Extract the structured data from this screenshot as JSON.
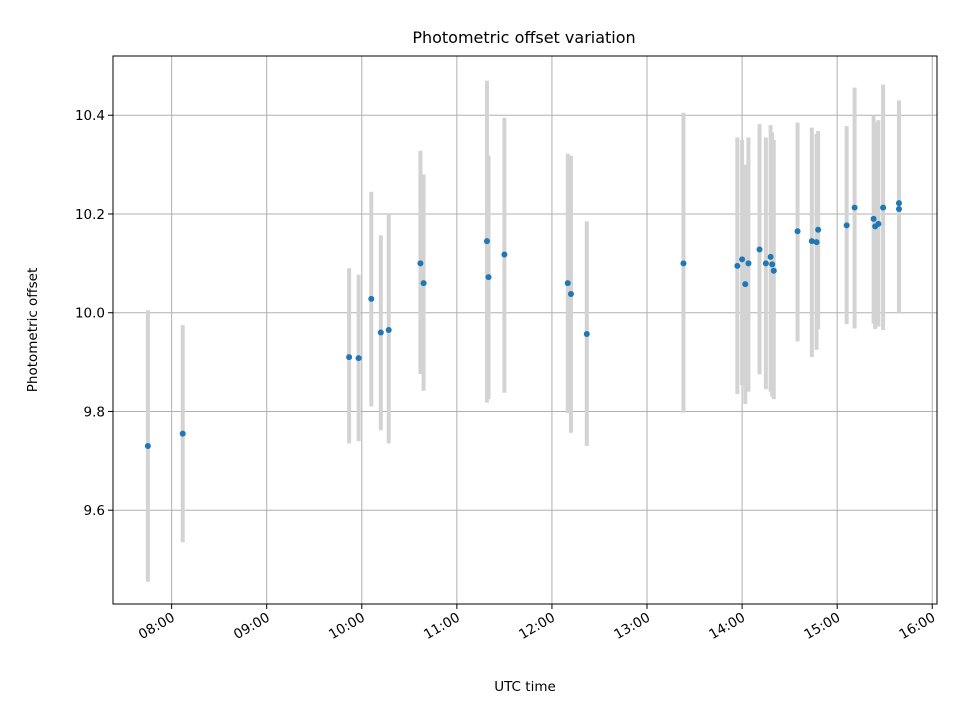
{
  "chart_data": {
    "type": "scatter",
    "title": "Photometric offset variation",
    "xlabel": "UTC time",
    "ylabel": "Photometric offset",
    "grid": true,
    "xlim": [
      "07:23",
      "16:03"
    ],
    "ylim": [
      9.41,
      10.52
    ],
    "xticks": [
      "08:00",
      "09:00",
      "10:00",
      "11:00",
      "12:00",
      "13:00",
      "14:00",
      "15:00",
      "16:00"
    ],
    "yticks": [
      "9.6",
      "9.8",
      "10.0",
      "10.2",
      "10.4"
    ],
    "marker_color": "#1f77b4",
    "errorbar_color": "#d3d3d3",
    "points": [
      {
        "x": "07:45",
        "y": 9.73,
        "low": 9.455,
        "high": 10.005
      },
      {
        "x": "08:07",
        "y": 9.755,
        "low": 9.535,
        "high": 9.975
      },
      {
        "x": "09:52",
        "y": 9.91,
        "low": 9.735,
        "high": 10.09
      },
      {
        "x": "09:58",
        "y": 9.908,
        "low": 9.74,
        "high": 10.077
      },
      {
        "x": "10:06",
        "y": 10.028,
        "low": 9.81,
        "high": 10.245
      },
      {
        "x": "10:12",
        "y": 9.96,
        "low": 9.762,
        "high": 10.157
      },
      {
        "x": "10:17",
        "y": 9.965,
        "low": 9.735,
        "high": 10.2
      },
      {
        "x": "10:37",
        "y": 10.1,
        "low": 9.876,
        "high": 10.328
      },
      {
        "x": "10:39",
        "y": 10.06,
        "low": 9.842,
        "high": 10.28
      },
      {
        "x": "11:19",
        "y": 10.145,
        "low": 9.818,
        "high": 10.47
      },
      {
        "x": "11:20",
        "y": 10.072,
        "low": 9.825,
        "high": 10.318
      },
      {
        "x": "11:30",
        "y": 10.118,
        "low": 9.838,
        "high": 10.395
      },
      {
        "x": "12:10",
        "y": 10.06,
        "low": 9.797,
        "high": 10.322
      },
      {
        "x": "12:12",
        "y": 10.038,
        "low": 9.757,
        "high": 10.318
      },
      {
        "x": "12:22",
        "y": 9.957,
        "low": 9.73,
        "high": 10.185
      },
      {
        "x": "13:23",
        "y": 10.1,
        "low": 9.798,
        "high": 10.405
      },
      {
        "x": "13:57",
        "y": 10.095,
        "low": 9.835,
        "high": 10.355
      },
      {
        "x": "14:00",
        "y": 10.108,
        "low": 9.853,
        "high": 10.35
      },
      {
        "x": "14:02",
        "y": 10.058,
        "low": 9.815,
        "high": 10.3
      },
      {
        "x": "14:04",
        "y": 10.1,
        "low": 9.84,
        "high": 10.355
      },
      {
        "x": "14:11",
        "y": 10.128,
        "low": 9.875,
        "high": 10.382
      },
      {
        "x": "14:15",
        "y": 10.1,
        "low": 9.845,
        "high": 10.355
      },
      {
        "x": "14:18",
        "y": 10.113,
        "low": 9.84,
        "high": 10.38
      },
      {
        "x": "14:19",
        "y": 10.098,
        "low": 9.83,
        "high": 10.365
      },
      {
        "x": "14:20",
        "y": 10.085,
        "low": 9.825,
        "high": 10.35
      },
      {
        "x": "14:35",
        "y": 10.165,
        "low": 9.942,
        "high": 10.385
      },
      {
        "x": "14:44",
        "y": 10.145,
        "low": 9.91,
        "high": 10.375
      },
      {
        "x": "14:47",
        "y": 10.143,
        "low": 9.925,
        "high": 10.362
      },
      {
        "x": "14:48",
        "y": 10.168,
        "low": 9.967,
        "high": 10.368
      },
      {
        "x": "15:06",
        "y": 10.177,
        "low": 9.977,
        "high": 10.378
      },
      {
        "x": "15:11",
        "y": 10.213,
        "low": 9.968,
        "high": 10.456
      },
      {
        "x": "15:23",
        "y": 10.19,
        "low": 9.978,
        "high": 10.4
      },
      {
        "x": "15:24",
        "y": 10.175,
        "low": 9.967,
        "high": 10.385
      },
      {
        "x": "15:26",
        "y": 10.18,
        "low": 9.972,
        "high": 10.39
      },
      {
        "x": "15:29",
        "y": 10.213,
        "low": 9.965,
        "high": 10.462
      },
      {
        "x": "15:39",
        "y": 10.222,
        "low": 10.015,
        "high": 10.43
      },
      {
        "x": "15:39",
        "y": 10.21,
        "low": 10.0,
        "high": 10.42
      }
    ]
  }
}
